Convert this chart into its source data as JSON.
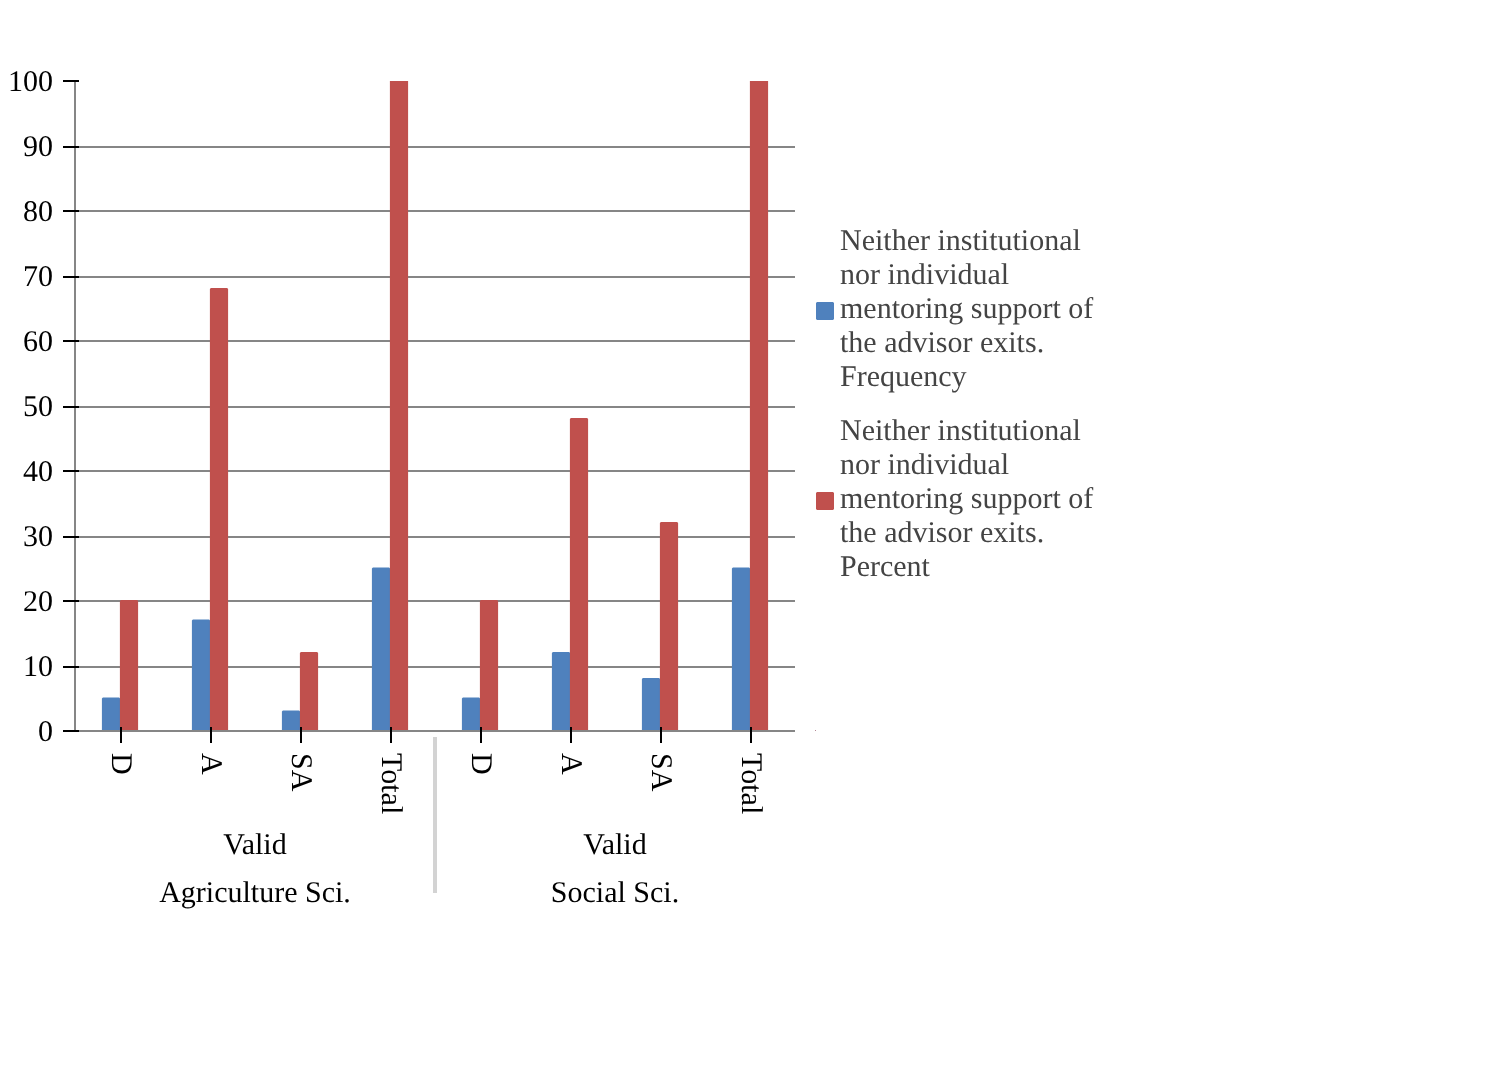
{
  "chart_data": {
    "type": "bar",
    "categories": [
      "D",
      "A",
      "SA",
      "Total",
      "D",
      "A",
      "SA",
      "Total"
    ],
    "annotations": [
      "Valid",
      "Agriculture Sci.",
      "Valid",
      "Social Sci."
    ],
    "series": [
      {
        "name": "Neither institutional nor individual mentoring support of the advisor exits. Frequency",
        "color": "#4f81bd",
        "values": [
          5,
          17,
          3,
          25,
          5,
          12,
          8,
          25
        ]
      },
      {
        "name": "Neither institutional nor individual mentoring support of the advisor exits. Percent",
        "color": "#c0504d",
        "values": [
          20,
          68,
          12,
          100,
          20,
          48,
          32,
          100
        ]
      }
    ],
    "ylim": [
      0,
      100
    ],
    "yticks": [
      0,
      10,
      20,
      30,
      40,
      50,
      60,
      70,
      80,
      90,
      100
    ],
    "grid": "y",
    "legend": "right"
  }
}
